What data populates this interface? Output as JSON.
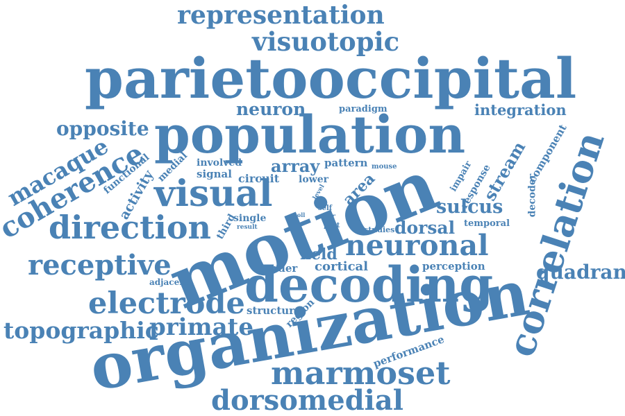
{
  "color": "#4a82b5",
  "words": {
    "representation": "representation",
    "visuotopic": "visuotopic",
    "parietooccipital": "parietooccipital",
    "neuron": "neuron",
    "paradigm": "paradigm",
    "integration": "integration",
    "opposite": "opposite",
    "population": "population",
    "correlation": "correlation",
    "coherence": "coherence",
    "macaque": "macaque",
    "functional": "functional",
    "medial": "medial",
    "involved": "involved",
    "signal": "signal",
    "pattern": "pattern",
    "array": "array",
    "mouse": "mouse",
    "impair": "impair",
    "response": "response",
    "component": "component",
    "stream": "stream",
    "decoder": "decoder",
    "activity": "activity",
    "visual": "visual",
    "circuit": "circuit",
    "lower": "lower",
    "level": "level",
    "area": "area",
    "motion": "motion",
    "sulcus": "sulcus",
    "coll": "coll",
    "direction": "direction",
    "third": "third",
    "single": "single",
    "result": "result",
    "self": "self",
    "tier": "tier",
    "part": "part",
    "studies": "studies",
    "dorsal": "dorsal",
    "temporal": "temporal",
    "neuronal": "neuronal",
    "receptive": "receptive",
    "field": "field",
    "border": "border",
    "cortical": "cortical",
    "perception": "perception",
    "quadrant": "quadrant",
    "adjacent": "adjacent",
    "decoding": "decoding",
    "electrode": "electrode",
    "structure": "structure",
    "region": "region",
    "topographic": "topographic",
    "primate": "primate",
    "organization": "organization",
    "performance": "performance",
    "marmoset": "marmoset",
    "dorsomedial": "dorsomedial"
  }
}
